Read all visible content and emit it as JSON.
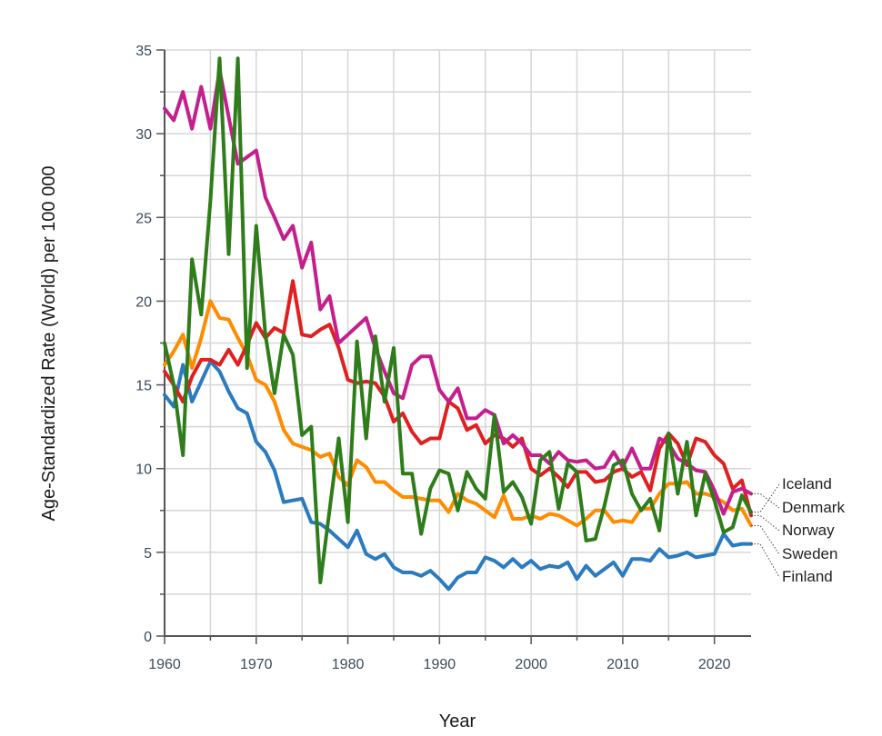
{
  "chart_data": {
    "type": "line",
    "xlabel": "Year",
    "ylabel": "Age-Standardized Rate (World) per 100 000",
    "xlim": [
      1960,
      2024
    ],
    "ylim": [
      0,
      35
    ],
    "x_ticks": [
      1960,
      1970,
      1980,
      1990,
      2000,
      2010,
      2020
    ],
    "y_ticks": [
      0,
      5,
      10,
      15,
      20,
      25,
      30,
      35
    ],
    "grid": true,
    "legend_position": "right, labels at line ends",
    "x": [
      1960,
      1961,
      1962,
      1963,
      1964,
      1965,
      1966,
      1967,
      1968,
      1969,
      1970,
      1971,
      1972,
      1973,
      1974,
      1975,
      1976,
      1977,
      1978,
      1979,
      1980,
      1981,
      1982,
      1983,
      1984,
      1985,
      1986,
      1987,
      1988,
      1989,
      1990,
      1991,
      1992,
      1993,
      1994,
      1995,
      1996,
      1997,
      1998,
      1999,
      2000,
      2001,
      2002,
      2003,
      2004,
      2005,
      2006,
      2007,
      2008,
      2009,
      2010,
      2011,
      2012,
      2013,
      2014,
      2015,
      2016,
      2017,
      2018,
      2019,
      2020,
      2021,
      2022,
      2023,
      2024
    ],
    "series": [
      {
        "name": "Iceland",
        "color": "#2e7d1a",
        "values": [
          17.5,
          15.0,
          10.8,
          22.5,
          19.2,
          26.0,
          34.5,
          22.8,
          34.5,
          16.0,
          24.5,
          18.0,
          14.5,
          18.0,
          16.8,
          12.0,
          12.5,
          3.2,
          7.5,
          11.8,
          6.8,
          17.6,
          11.8,
          17.9,
          14.0,
          17.2,
          9.7,
          9.7,
          6.1,
          8.8,
          9.9,
          9.7,
          7.5,
          9.8,
          8.8,
          8.2,
          13.2,
          8.6,
          9.2,
          8.3,
          6.7,
          10.5,
          11.0,
          7.6,
          10.3,
          9.8,
          5.7,
          5.8,
          7.8,
          10.2,
          10.5,
          8.5,
          7.5,
          8.2,
          6.3,
          12.1,
          8.5,
          11.6,
          7.2,
          9.7,
          8.1,
          6.2,
          6.5,
          8.4,
          7.4
        ]
      },
      {
        "name": "Denmark",
        "color": "#c41f8d",
        "values": [
          31.5,
          30.8,
          32.5,
          30.3,
          32.8,
          30.3,
          33.8,
          31.0,
          28.2,
          28.6,
          29.0,
          26.2,
          25.0,
          23.7,
          24.5,
          22.0,
          23.5,
          19.5,
          20.3,
          17.5,
          18.0,
          18.5,
          19.0,
          17.2,
          15.8,
          14.5,
          14.2,
          16.2,
          16.7,
          16.7,
          14.7,
          14.0,
          14.8,
          13.0,
          13.0,
          13.5,
          13.2,
          11.5,
          12.0,
          11.5,
          10.8,
          10.8,
          10.3,
          11.0,
          10.5,
          10.4,
          10.5,
          10.0,
          10.1,
          11.0,
          10.1,
          11.2,
          10.0,
          10.0,
          11.8,
          11.5,
          10.6,
          10.3,
          9.9,
          9.8,
          8.7,
          7.3,
          8.6,
          8.8,
          8.5
        ]
      },
      {
        "name": "Norway",
        "color": "#e02020",
        "values": [
          15.8,
          15.0,
          14.0,
          15.5,
          16.5,
          16.5,
          16.2,
          17.1,
          16.2,
          17.4,
          18.7,
          17.8,
          18.4,
          18.1,
          21.2,
          18.0,
          17.9,
          18.3,
          18.6,
          17.2,
          15.3,
          15.1,
          15.2,
          15.1,
          14.3,
          12.8,
          13.3,
          12.2,
          11.5,
          11.8,
          11.8,
          14.0,
          13.6,
          12.3,
          12.6,
          11.5,
          12.0,
          11.8,
          11.3,
          11.8,
          10.0,
          9.6,
          10.0,
          9.5,
          8.9,
          9.8,
          9.8,
          9.2,
          9.3,
          9.8,
          10.0,
          9.5,
          9.8,
          8.7,
          11.2,
          12.1,
          11.5,
          10.2,
          11.8,
          11.6,
          10.8,
          10.3,
          8.8,
          9.3,
          7.2
        ]
      },
      {
        "name": "Sweden",
        "color": "#ff8c00",
        "values": [
          16.2,
          17.0,
          18.0,
          16.0,
          17.8,
          20.0,
          19.0,
          18.9,
          17.8,
          16.8,
          15.3,
          15.0,
          14.0,
          12.3,
          11.5,
          11.3,
          11.1,
          10.7,
          10.9,
          9.5,
          9.0,
          10.5,
          10.1,
          9.2,
          9.2,
          8.7,
          8.3,
          8.3,
          8.2,
          8.1,
          8.1,
          7.4,
          8.5,
          8.1,
          7.9,
          7.5,
          7.1,
          8.4,
          7.0,
          7.0,
          7.2,
          7.0,
          7.3,
          7.2,
          6.9,
          6.6,
          7.0,
          7.5,
          7.5,
          6.8,
          6.9,
          6.8,
          7.6,
          7.6,
          8.5,
          9.1,
          9.1,
          9.2,
          8.5,
          8.5,
          8.3,
          8.0,
          7.5,
          7.6,
          6.6
        ]
      },
      {
        "name": "Finland",
        "color": "#2a7bbf",
        "values": [
          14.4,
          13.7,
          16.2,
          14.0,
          15.2,
          16.4,
          15.8,
          14.6,
          13.6,
          13.3,
          11.6,
          11.0,
          9.9,
          8.0,
          8.1,
          8.2,
          6.8,
          6.7,
          6.3,
          5.8,
          5.3,
          6.3,
          4.9,
          4.6,
          4.9,
          4.1,
          3.8,
          3.8,
          3.6,
          3.9,
          3.4,
          2.8,
          3.5,
          3.8,
          3.8,
          4.7,
          4.5,
          4.1,
          4.6,
          4.1,
          4.5,
          4.0,
          4.2,
          4.1,
          4.4,
          3.4,
          4.2,
          3.6,
          4.0,
          4.4,
          3.6,
          4.6,
          4.6,
          4.5,
          5.2,
          4.7,
          4.8,
          5.0,
          4.7,
          4.8,
          4.9,
          6.1,
          5.4,
          5.5,
          5.5
        ]
      }
    ]
  }
}
